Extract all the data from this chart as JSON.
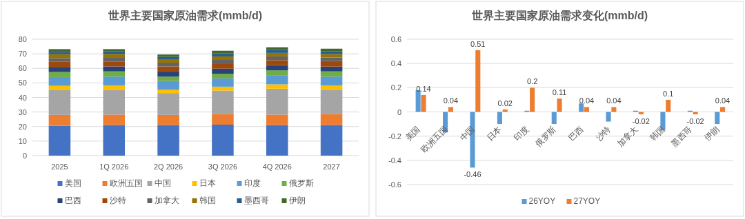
{
  "chart_data": [
    {
      "type": "bar",
      "title": "世界主要国家原油需求(mmb/d)",
      "categories": [
        "2025",
        "1Q 2026",
        "2Q 2026",
        "3Q 2026",
        "4Q 2026",
        "2027"
      ],
      "stacked": true,
      "ylim": [
        0,
        80
      ],
      "yticks": [
        0,
        10,
        20,
        30,
        40,
        50,
        60,
        70,
        80
      ],
      "grid": "y",
      "legend": "bottom",
      "series": [
        {
          "name": "美国",
          "color": "#4472c4",
          "values": [
            20.5,
            21,
            21,
            21.3,
            21,
            21
          ]
        },
        {
          "name": "欧洲五国",
          "color": "#ed7d31",
          "values": [
            7.5,
            7.2,
            7,
            7.2,
            7.2,
            7.5
          ]
        },
        {
          "name": "中国",
          "color": "#a5a5a5",
          "values": [
            17,
            16.8,
            15,
            16.2,
            17.8,
            16.8
          ]
        },
        {
          "name": "日本",
          "color": "#ffc000",
          "values": [
            3,
            3.3,
            2.3,
            2.7,
            3,
            3
          ]
        },
        {
          "name": "印度",
          "color": "#5b9bd5",
          "values": [
            6,
            6,
            6,
            5.7,
            6.3,
            6
          ]
        },
        {
          "name": "俄罗斯",
          "color": "#70ad47",
          "values": [
            3.5,
            3.6,
            3,
            3.2,
            3.3,
            3.6
          ]
        },
        {
          "name": "巴西",
          "color": "#264478",
          "values": [
            3.5,
            3.4,
            3.4,
            3.5,
            3.6,
            3.3
          ]
        },
        {
          "name": "沙特",
          "color": "#9e480e",
          "values": [
            3.5,
            3.4,
            3.6,
            3.6,
            3.4,
            3.8
          ]
        },
        {
          "name": "加拿大",
          "color": "#636363",
          "values": [
            2.5,
            2.5,
            2.6,
            2.4,
            2.6,
            2.4
          ]
        },
        {
          "name": "韩国",
          "color": "#997300",
          "values": [
            2.7,
            2.6,
            2,
            2.4,
            2.4,
            2.4
          ]
        },
        {
          "name": "墨西哥",
          "color": "#255e91",
          "values": [
            1.6,
            1.8,
            2,
            2,
            2,
            1.8
          ]
        },
        {
          "name": "伊朗",
          "color": "#43682b",
          "values": [
            1.9,
            1.6,
            1.6,
            1.9,
            1.9,
            1.9
          ]
        }
      ]
    },
    {
      "type": "bar",
      "title": "世界主要国家原油需求变化(mmb/d)",
      "categories": [
        "美国",
        "欧洲五国",
        "中国",
        "日本",
        "印度",
        "俄罗斯",
        "巴西",
        "沙特",
        "加拿大",
        "韩国",
        "墨西哥",
        "伊朗"
      ],
      "ylim": [
        -0.6,
        0.6
      ],
      "yticks": [
        -0.6,
        -0.4,
        -0.2,
        0,
        0.2,
        0.4,
        0.6
      ],
      "grid": "y",
      "legend": "bottom",
      "series": [
        {
          "name": "26YOY",
          "color": "#5b9bd5",
          "values": [
            0.18,
            -0.17,
            -0.46,
            -0.1,
            0.01,
            -0.1,
            0.07,
            -0.08,
            0.01,
            -0.15,
            0.01,
            -0.1
          ],
          "value_labels": [
            null,
            null,
            "-0.46",
            null,
            null,
            null,
            null,
            null,
            null,
            null,
            null,
            null
          ]
        },
        {
          "name": "27YOY",
          "color": "#ed7d31",
          "values": [
            0.14,
            0.04,
            0.51,
            0.02,
            0.2,
            0.11,
            0.04,
            0.04,
            -0.02,
            0.1,
            -0.02,
            0.04
          ],
          "value_labels": [
            "0.14",
            "0.04",
            "0.51",
            "0.02",
            "0.2",
            "0.11",
            "0.04",
            "0.04",
            "-0.02",
            "0.1",
            "-0.02",
            "0.04"
          ]
        }
      ]
    }
  ]
}
